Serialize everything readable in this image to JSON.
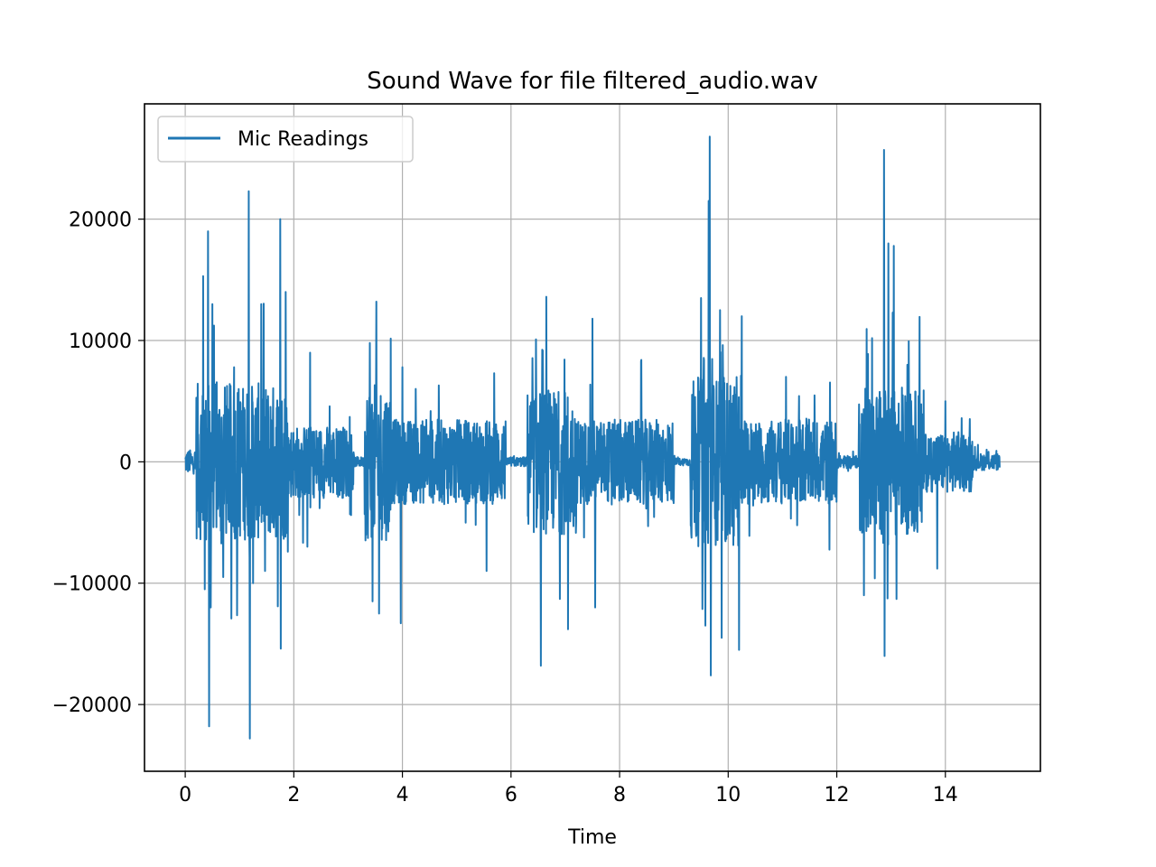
{
  "chart_data": {
    "type": "line",
    "title": "Sound Wave for file filtered_audio.wav",
    "xlabel": "Time",
    "ylabel": "",
    "xlim": [
      -0.75,
      15.75
    ],
    "ylim": [
      -25500,
      29500
    ],
    "xticks": [
      0,
      2,
      4,
      6,
      8,
      10,
      12,
      14
    ],
    "xtick_labels": [
      "0",
      "2",
      "4",
      "6",
      "8",
      "10",
      "12",
      "14"
    ],
    "yticks": [
      -20000,
      -10000,
      0,
      10000,
      20000
    ],
    "ytick_labels": [
      "−20000",
      "−10000",
      "0",
      "10000",
      "20000"
    ],
    "grid": true,
    "legend_position": "top-left",
    "colors": {
      "line": "#1f77b4",
      "grid": "#b0b0b0",
      "axes": "#000000"
    },
    "series": [
      {
        "name": "Mic Readings",
        "color": "#1f77b4",
        "envelope_segments": [
          {
            "t": [
              0.0,
              0.2
            ],
            "level": 1000
          },
          {
            "t": [
              0.2,
              1.9
            ],
            "level": 6500
          },
          {
            "t": [
              1.9,
              3.1
            ],
            "level": 3000
          },
          {
            "t": [
              3.1,
              3.3
            ],
            "level": 400
          },
          {
            "t": [
              3.3,
              3.8
            ],
            "level": 6500
          },
          {
            "t": [
              3.8,
              5.9
            ],
            "level": 3500
          },
          {
            "t": [
              5.9,
              6.3
            ],
            "level": 400
          },
          {
            "t": [
              6.3,
              7.2
            ],
            "level": 6000
          },
          {
            "t": [
              7.2,
              9.0
            ],
            "level": 3500
          },
          {
            "t": [
              9.0,
              9.3
            ],
            "level": 300
          },
          {
            "t": [
              9.3,
              10.2
            ],
            "level": 7000
          },
          {
            "t": [
              10.2,
              12.0
            ],
            "level": 3500
          },
          {
            "t": [
              12.0,
              12.4
            ],
            "level": 500
          },
          {
            "t": [
              12.4,
              13.6
            ],
            "level": 6000
          },
          {
            "t": [
              13.6,
              14.5
            ],
            "level": 2500
          },
          {
            "t": [
              14.5,
              15.0
            ],
            "level": 700
          }
        ],
        "peaks": [
          {
            "t": 0.33,
            "value": 15300
          },
          {
            "t": 0.36,
            "value": -10500
          },
          {
            "t": 0.42,
            "value": 19000
          },
          {
            "t": 0.44,
            "value": -21800
          },
          {
            "t": 0.47,
            "value": -12000
          },
          {
            "t": 0.5,
            "value": 13000
          },
          {
            "t": 0.7,
            "value": -9500
          },
          {
            "t": 0.9,
            "value": 7800
          },
          {
            "t": 1.17,
            "value": 22300
          },
          {
            "t": 1.19,
            "value": -22800
          },
          {
            "t": 1.25,
            "value": -10000
          },
          {
            "t": 1.4,
            "value": 13000
          },
          {
            "t": 1.47,
            "value": -9000
          },
          {
            "t": 1.75,
            "value": 20000
          },
          {
            "t": 1.76,
            "value": -15400
          },
          {
            "t": 1.85,
            "value": 14000
          },
          {
            "t": 2.3,
            "value": 9000
          },
          {
            "t": 2.25,
            "value": -7000
          },
          {
            "t": 3.4,
            "value": 9800
          },
          {
            "t": 3.45,
            "value": -11500
          },
          {
            "t": 3.52,
            "value": 13200
          },
          {
            "t": 3.57,
            "value": -12500
          },
          {
            "t": 3.97,
            "value": -13300
          },
          {
            "t": 4.0,
            "value": 7800
          },
          {
            "t": 5.55,
            "value": -9000
          },
          {
            "t": 6.55,
            "value": -16800
          },
          {
            "t": 6.65,
            "value": 13600
          },
          {
            "t": 6.9,
            "value": -11300
          },
          {
            "t": 7.05,
            "value": -13800
          },
          {
            "t": 7.5,
            "value": 11800
          },
          {
            "t": 7.55,
            "value": -12000
          },
          {
            "t": 8.4,
            "value": 8400
          },
          {
            "t": 9.5,
            "value": 13500
          },
          {
            "t": 9.58,
            "value": -13500
          },
          {
            "t": 9.64,
            "value": 21500
          },
          {
            "t": 9.66,
            "value": 26800
          },
          {
            "t": 9.68,
            "value": -17600
          },
          {
            "t": 9.85,
            "value": 12500
          },
          {
            "t": 9.88,
            "value": -14500
          },
          {
            "t": 10.2,
            "value": -15500
          },
          {
            "t": 10.25,
            "value": 12000
          },
          {
            "t": 12.5,
            "value": -11000
          },
          {
            "t": 12.65,
            "value": 10200
          },
          {
            "t": 12.7,
            "value": -9600
          },
          {
            "t": 12.87,
            "value": 25700
          },
          {
            "t": 12.88,
            "value": -16000
          },
          {
            "t": 12.95,
            "value": 18000
          },
          {
            "t": 13.05,
            "value": 17800
          },
          {
            "t": 13.1,
            "value": -11300
          },
          {
            "t": 13.3,
            "value": 8000
          },
          {
            "t": 13.85,
            "value": -8800
          },
          {
            "t": 14.0,
            "value": 5000
          }
        ]
      }
    ]
  }
}
